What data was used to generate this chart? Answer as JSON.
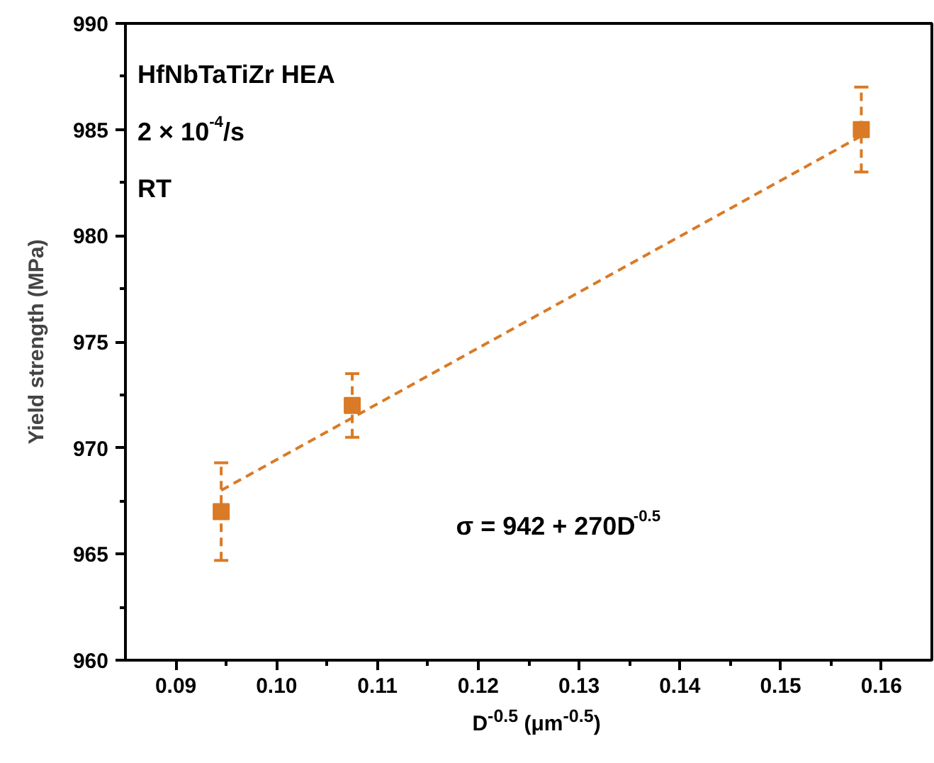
{
  "chart_data": {
    "type": "scatter",
    "xlabel": "D$^{-0.5}$ (μm$^{-0.5}$)",
    "ylabel": "Yield strength (MPa)",
    "xlim": [
      0.085,
      0.165
    ],
    "xticks": [
      0.09,
      {
        "value": 0.1,
        "label": "0.10"
      },
      0.11,
      0.12,
      0.13,
      0.14,
      0.15,
      0.16
    ],
    "ylim": [
      960,
      990
    ],
    "yticks": [
      960,
      965,
      970,
      975,
      980,
      985,
      990
    ],
    "line_style": "dashed",
    "series": [
      {
        "color": "#d97a26",
        "marker": "square",
        "x": [
          0.0945,
          0.1075,
          0.158
        ],
        "values": [
          967,
          972,
          985
        ],
        "errors": [
          2.3,
          1.5,
          2
        ]
      },
      {
        "type": "line",
        "color": "#d97a26",
        "marker": "none",
        "x": [
          0.0945,
          0.158
        ],
        "values": [
          968,
          984.7
        ]
      }
    ],
    "annotations": [
      "HfNbTaTiZr HEA",
      "2 × 10$^{-4}$/s",
      "RT",
      "σ = 942 + 270D$^{-0.5}$"
    ]
  }
}
